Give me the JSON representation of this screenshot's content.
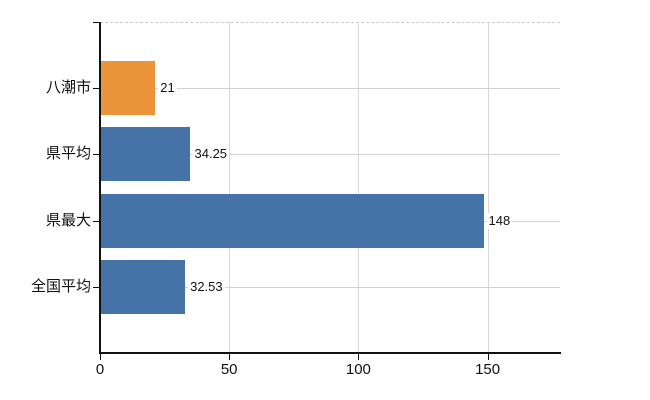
{
  "chart_data": {
    "type": "bar",
    "orientation": "horizontal",
    "title": "",
    "xlabel": "",
    "ylabel": "",
    "categories": [
      "八潮市",
      "県平均",
      "県最大",
      "全国平均"
    ],
    "values": [
      21,
      34.25,
      148,
      32.53
    ],
    "value_labels": [
      "21",
      "34.25",
      "148",
      "32.53"
    ],
    "bar_colors": [
      "#eb9339",
      "#4572a7",
      "#4572a7",
      "#4572a7"
    ],
    "xlim": [
      0,
      178
    ],
    "x_ticks": [
      0,
      50,
      100,
      150
    ],
    "x_tick_labels": [
      "0",
      "50",
      "100",
      "150"
    ],
    "grid": true,
    "legend": false
  },
  "style": {
    "background": "#ffffff",
    "axis_color": "#111111",
    "vertical_grid_color": "#d9d9d9",
    "horizontal_grid_color": "#cdd3cd",
    "top_border_color": "#cccccc",
    "highlight_bar_color": "#eb9339",
    "default_bar_color": "#4572a7",
    "text_color": "#111111"
  }
}
